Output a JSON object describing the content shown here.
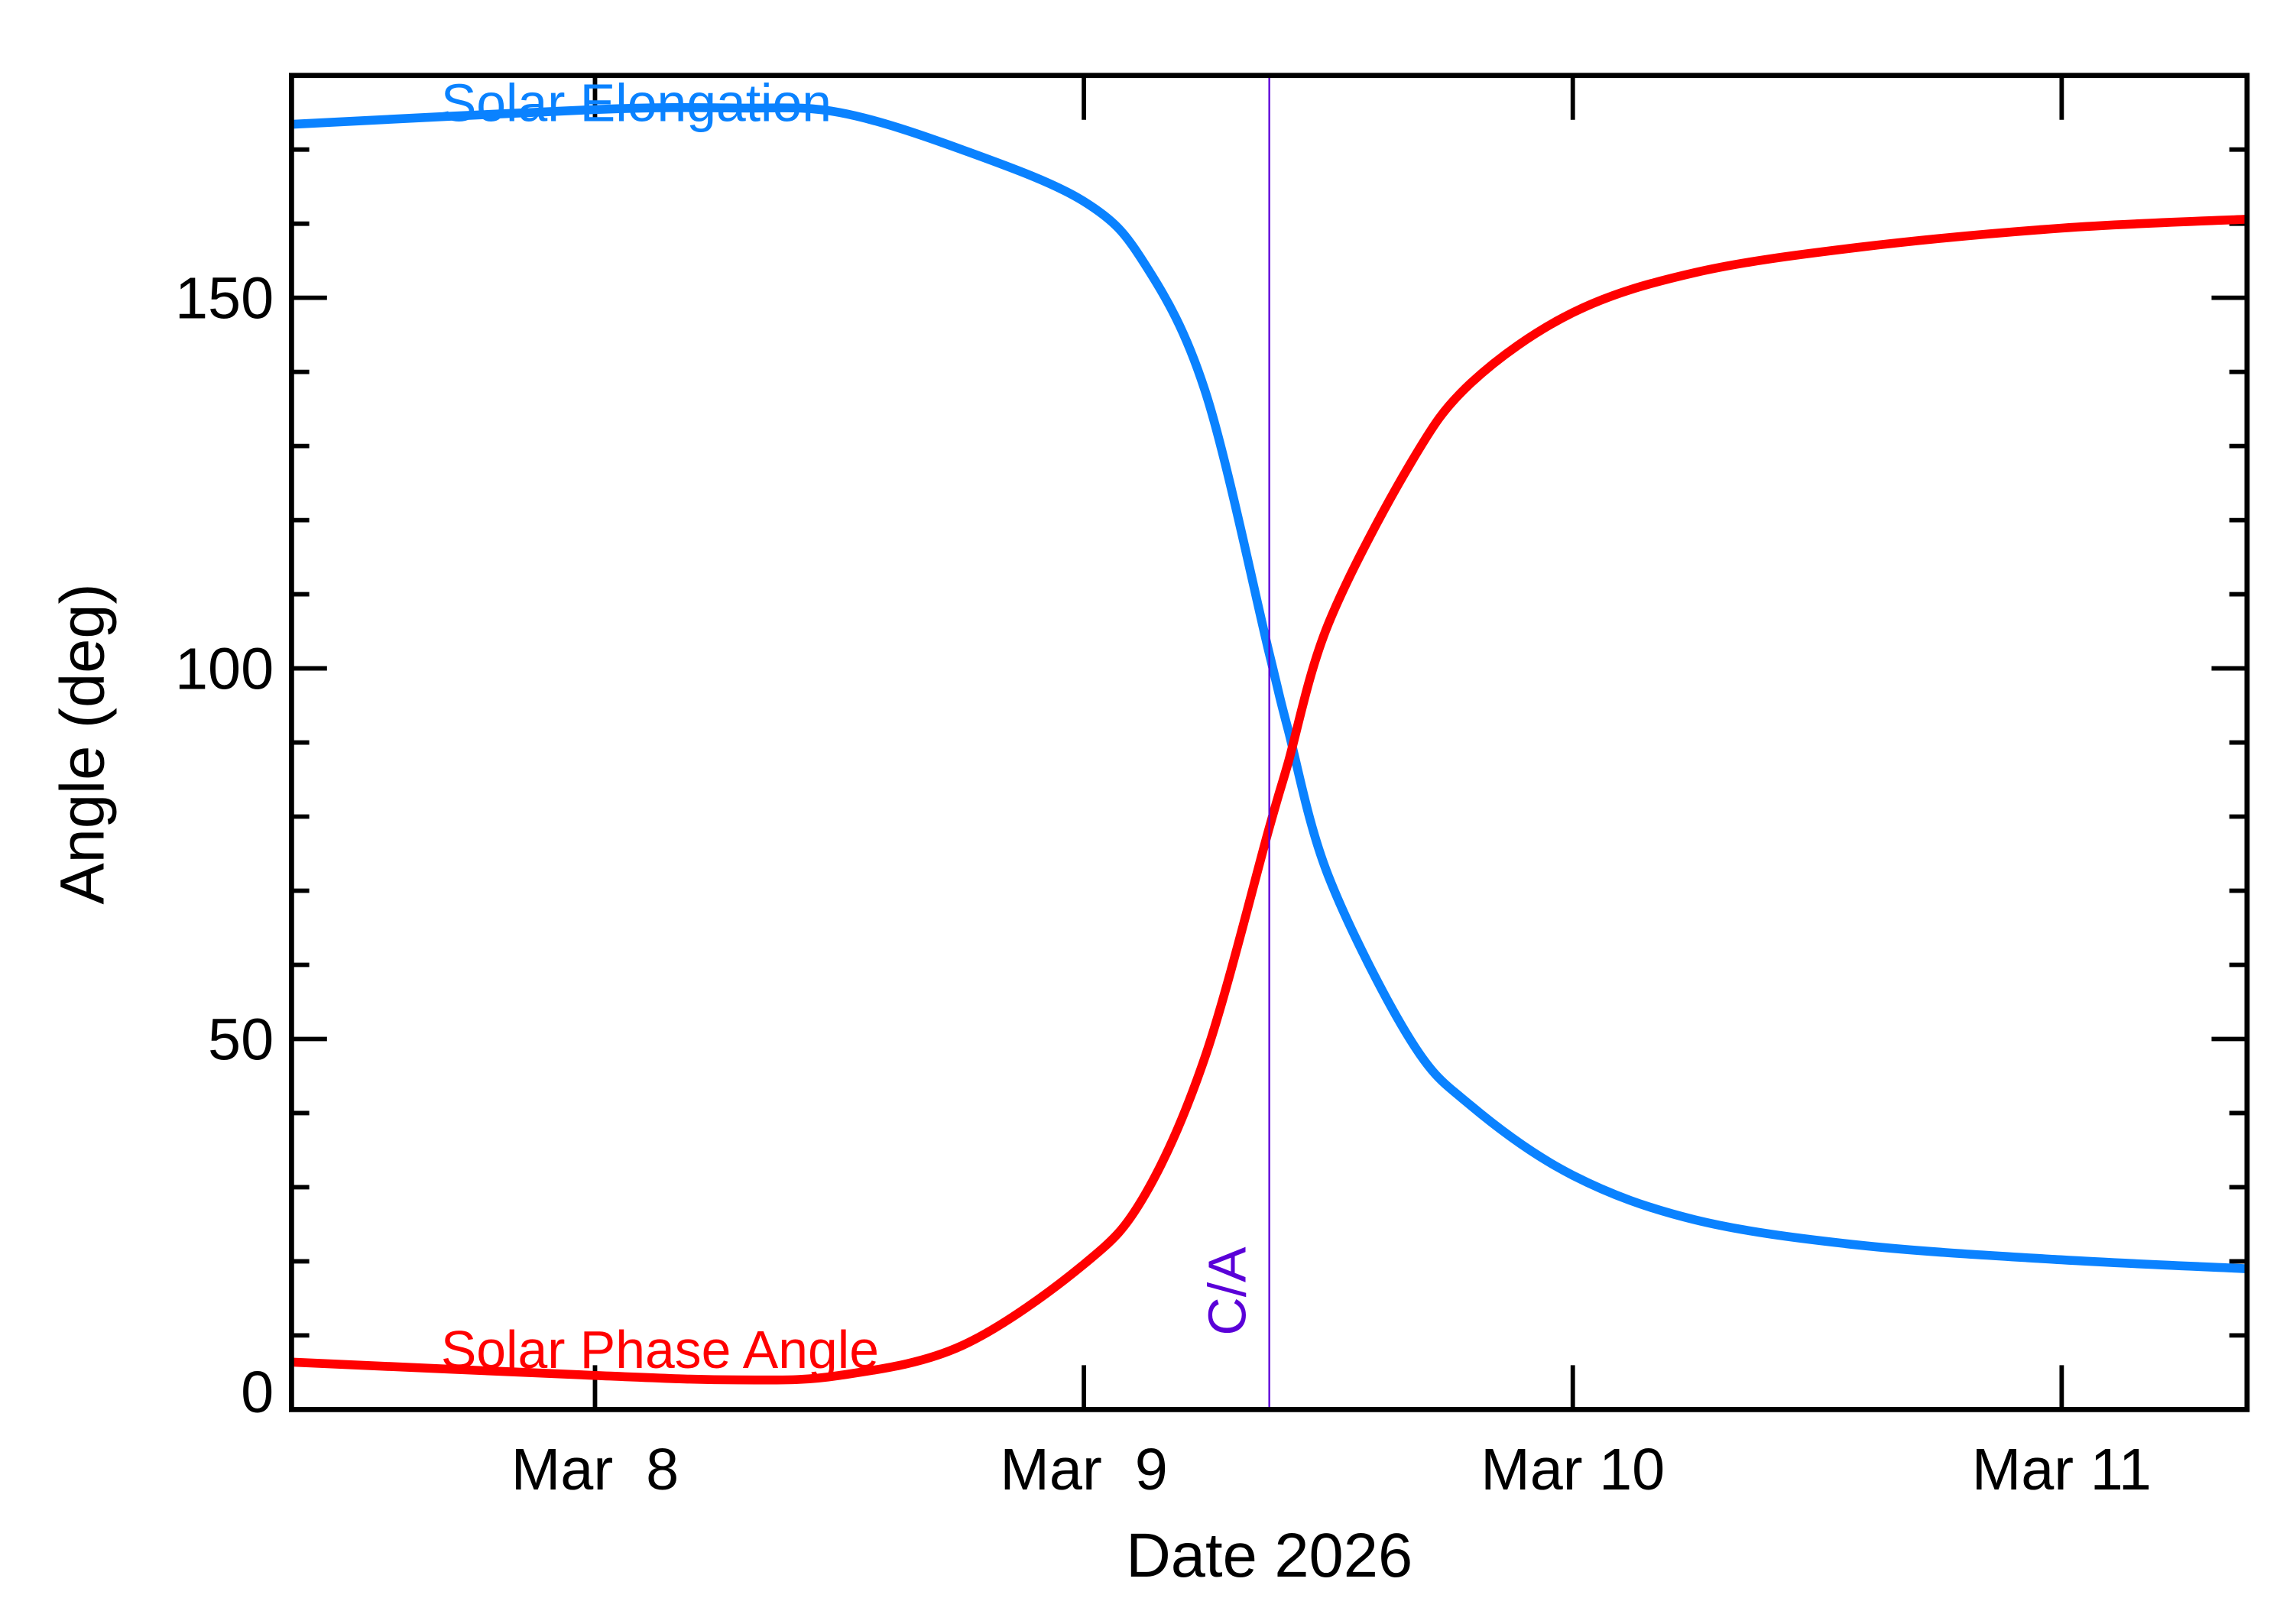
{
  "chart_data": {
    "type": "line",
    "title": "",
    "xlabel": "Date 2026",
    "ylabel": "Angle (deg)",
    "xlim": [
      "2026-03-07T09:06",
      "2026-03-11T09:06"
    ],
    "ylim": [
      0,
      180
    ],
    "x_ticks": [
      {
        "value": "2026-03-08T00:00",
        "label": "Mar  8"
      },
      {
        "value": "2026-03-09T00:00",
        "label": "Mar  9"
      },
      {
        "value": "2026-03-10T00:00",
        "label": "Mar 10"
      },
      {
        "value": "2026-03-11T00:00",
        "label": "Mar 11"
      }
    ],
    "y_ticks": [
      {
        "value": 0,
        "label": "0"
      },
      {
        "value": 50,
        "label": "50"
      },
      {
        "value": 100,
        "label": "100"
      },
      {
        "value": 150,
        "label": "150"
      }
    ],
    "y_minor_step": 10,
    "grid": false,
    "closest_approach": {
      "date": "2026-03-09T09:06",
      "label": "C/A",
      "color": "#5a00d8"
    },
    "series": [
      {
        "name": "Solar Elongation",
        "color": "#0a82ff",
        "x": [
          "2026-03-07T09:06",
          "2026-03-08T00:00",
          "2026-03-08T07:00",
          "2026-03-08T12:00",
          "2026-03-08T18:00",
          "2026-03-09T00:00",
          "2026-03-09T03:00",
          "2026-03-09T06:00",
          "2026-03-09T09:06",
          "2026-03-09T10:00",
          "2026-03-09T12:00",
          "2026-03-09T16:00",
          "2026-03-09T19:00",
          "2026-03-10T00:00",
          "2026-03-10T06:00",
          "2026-03-10T14:00",
          "2026-03-11T00:00",
          "2026-03-11T09:06"
        ],
        "y": [
          173.4,
          175.4,
          175.6,
          175,
          170,
          163,
          154.5,
          137,
          102,
          92,
          72,
          50,
          41,
          31.6,
          25.6,
          22.2,
          20.2,
          19
        ]
      },
      {
        "name": "Solar Phase Angle",
        "color": "#ff0000",
        "x": [
          "2026-03-07T09:06",
          "2026-03-08T00:00",
          "2026-03-08T07:00",
          "2026-03-08T12:00",
          "2026-03-08T18:00",
          "2026-03-09T00:00",
          "2026-03-09T03:00",
          "2026-03-09T06:00",
          "2026-03-09T09:06",
          "2026-03-09T10:00",
          "2026-03-09T12:00",
          "2026-03-09T16:00",
          "2026-03-09T19:00",
          "2026-03-10T00:00",
          "2026-03-10T06:00",
          "2026-03-10T14:00",
          "2026-03-11T00:00",
          "2026-03-11T09:06"
        ],
        "y": [
          6.4,
          4.6,
          4.0,
          4.6,
          8.6,
          19.6,
          29,
          48,
          78.5,
          87,
          106,
          127.5,
          138.5,
          148,
          153.4,
          156.8,
          159.4,
          160.6
        ]
      }
    ]
  }
}
